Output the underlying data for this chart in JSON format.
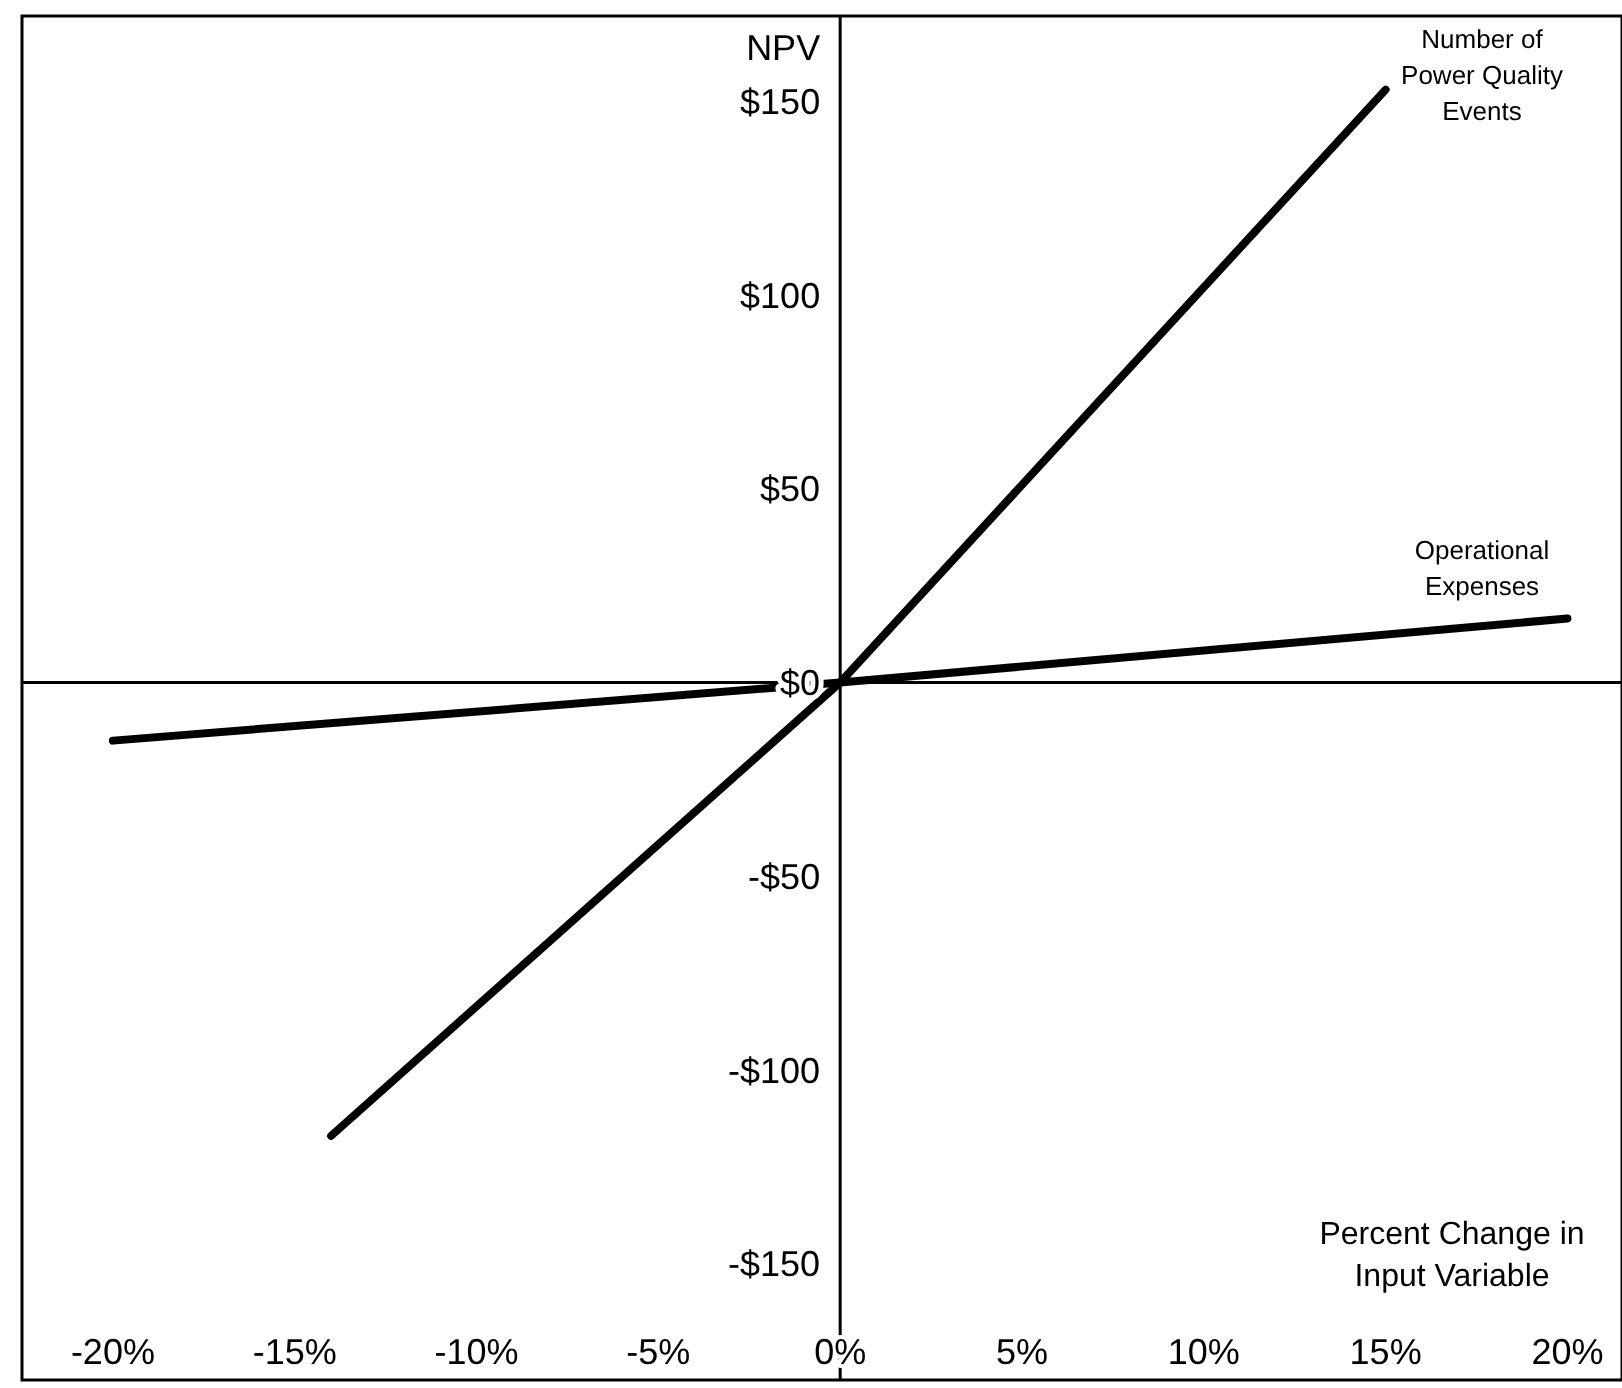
{
  "chart_data": {
    "type": "line",
    "ylabel": "NPV",
    "xlabel": "Percent Change in Input Variable",
    "xlim": [
      -22.5,
      21.5
    ],
    "ylim": [
      -180,
      172
    ],
    "xticks": [
      {
        "value": -20,
        "label": "-20%"
      },
      {
        "value": -15,
        "label": "-15%"
      },
      {
        "value": -10,
        "label": "-10%"
      },
      {
        "value": -5,
        "label": "-5%"
      },
      {
        "value": 0,
        "label": "0%"
      },
      {
        "value": 5,
        "label": "5%"
      },
      {
        "value": 10,
        "label": "10%"
      },
      {
        "value": 15,
        "label": "15%"
      },
      {
        "value": 20,
        "label": "20%"
      }
    ],
    "yticks": [
      {
        "value": -150,
        "label": "-$150"
      },
      {
        "value": -100,
        "label": "-$100"
      },
      {
        "value": -50,
        "label": "-$50"
      },
      {
        "value": 0,
        "label": "$0"
      },
      {
        "value": 50,
        "label": "$50"
      },
      {
        "value": 100,
        "label": "$100"
      },
      {
        "value": 150,
        "label": "$150"
      }
    ],
    "marker": "none",
    "line_style": "solid",
    "series": [
      {
        "name": "Number of Power Quality Events",
        "color": "#000000",
        "x": [
          -14,
          0,
          15
        ],
        "values": [
          -117,
          0,
          153
        ]
      },
      {
        "name": "Operational Expenses",
        "color": "#000000",
        "x": [
          -20,
          0,
          20
        ],
        "values": [
          -15,
          0,
          16.5
        ]
      }
    ]
  }
}
